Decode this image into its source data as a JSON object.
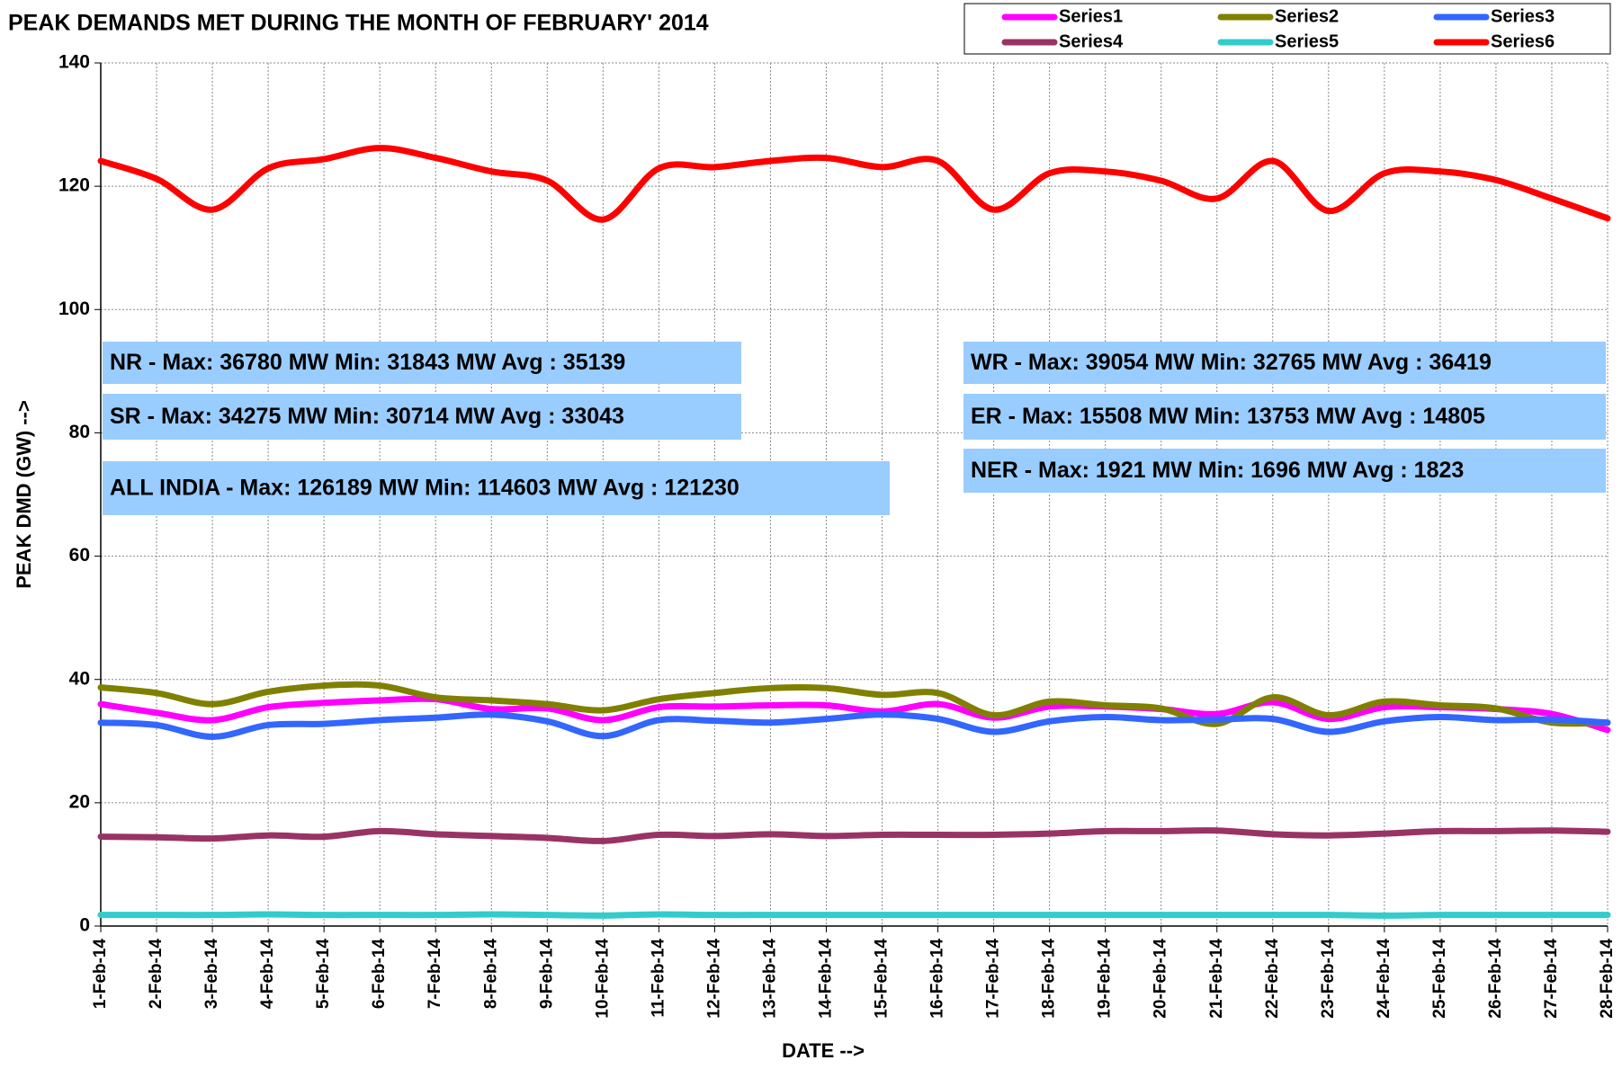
{
  "chart_data": {
    "type": "line",
    "title": "PEAK DEMANDS MET DURING THE MONTH OF FEBRUARY' 2014",
    "x_label": "DATE -->",
    "y_label": "PEAK DMD (GW) -->",
    "categories": [
      "1-Feb-14",
      "2-Feb-14",
      "3-Feb-14",
      "4-Feb-14",
      "5-Feb-14",
      "6-Feb-14",
      "7-Feb-14",
      "8-Feb-14",
      "9-Feb-14",
      "10-Feb-14",
      "11-Feb-14",
      "12-Feb-14",
      "13-Feb-14",
      "14-Feb-14",
      "15-Feb-14",
      "16-Feb-14",
      "17-Feb-14",
      "18-Feb-14",
      "19-Feb-14",
      "20-Feb-14",
      "21-Feb-14",
      "22-Feb-14",
      "23-Feb-14",
      "24-Feb-14",
      "25-Feb-14",
      "26-Feb-14",
      "27-Feb-14",
      "28-Feb-14"
    ],
    "series": [
      {
        "name": "Series1",
        "color": "#ff00ff",
        "values": [
          36,
          34.6,
          33.4,
          35.5,
          36.2,
          36.6,
          36.8,
          35.2,
          35.3,
          33.4,
          35.5,
          35.6,
          35.8,
          35.8,
          34.8,
          36,
          33.8,
          35.6,
          35.6,
          35.2,
          34.4,
          36.3,
          33.6,
          35.5,
          35.5,
          35.2,
          34.4,
          31.8
        ]
      },
      {
        "name": "Series2",
        "color": "#808000",
        "values": [
          38.7,
          37.8,
          36,
          38,
          39,
          39,
          37.1,
          36.6,
          36,
          35,
          36.8,
          37.8,
          38.6,
          38.6,
          37.5,
          37.8,
          34.2,
          36.4,
          35.8,
          35.3,
          32.8,
          37.1,
          34.2,
          36.4,
          35.8,
          35.3,
          33,
          33
        ]
      },
      {
        "name": "Series3",
        "color": "#3366ff",
        "values": [
          33,
          32.6,
          30.7,
          32.6,
          32.8,
          33.4,
          33.8,
          34.3,
          33.2,
          30.8,
          33.4,
          33.3,
          33,
          33.6,
          34.3,
          33.6,
          31.5,
          33.2,
          33.9,
          33.4,
          33.5,
          33.6,
          31.5,
          33.2,
          33.9,
          33.4,
          33.5,
          33
        ]
      },
      {
        "name": "Series4",
        "color": "#993366",
        "values": [
          14.5,
          14.4,
          14.2,
          14.7,
          14.5,
          15.4,
          14.9,
          14.6,
          14.3,
          13.8,
          14.8,
          14.6,
          14.9,
          14.6,
          14.8,
          14.8,
          14.8,
          15,
          15.4,
          15.4,
          15.5,
          14.9,
          14.7,
          15,
          15.4,
          15.4,
          15.5,
          15.3
        ]
      },
      {
        "name": "Series5",
        "color": "#33cccc",
        "values": [
          1.8,
          1.8,
          1.8,
          1.9,
          1.8,
          1.8,
          1.8,
          1.9,
          1.8,
          1.7,
          1.9,
          1.8,
          1.8,
          1.8,
          1.8,
          1.8,
          1.8,
          1.8,
          1.8,
          1.8,
          1.8,
          1.8,
          1.8,
          1.7,
          1.8,
          1.8,
          1.8,
          1.8
        ]
      },
      {
        "name": "Series6",
        "color": "#ff0000",
        "values": [
          124.1,
          121.2,
          116.2,
          122.9,
          124.4,
          126.2,
          124.6,
          122.4,
          120.9,
          114.6,
          122.9,
          123.1,
          124.1,
          124.6,
          123.1,
          124.1,
          116.2,
          122.1,
          122.4,
          120.9,
          118,
          124.1,
          116,
          122.1,
          122.4,
          121,
          118,
          114.8
        ]
      }
    ],
    "annotations": [
      "NR - Max: 36780 MW Min: 31843 MW Avg : 35139",
      "SR - Max: 34275 MW Min: 30714 MW Avg : 33043",
      "ALL INDIA - Max: 126189 MW Min: 114603 MW Avg : 121230",
      "WR - Max: 39054 MW Min: 32765 MW Avg : 36419",
      "ER - Max: 15508 MW Min: 13753 MW Avg : 14805",
      "NER - Max: 1921 MW Min: 1696 MW Avg : 1823"
    ],
    "annotation_color": "#99ccff",
    "ylim": [
      0,
      140
    ],
    "yticks": [
      0,
      20,
      40,
      60,
      80,
      100,
      120,
      140
    ],
    "grid": true,
    "legend": "top-right"
  }
}
